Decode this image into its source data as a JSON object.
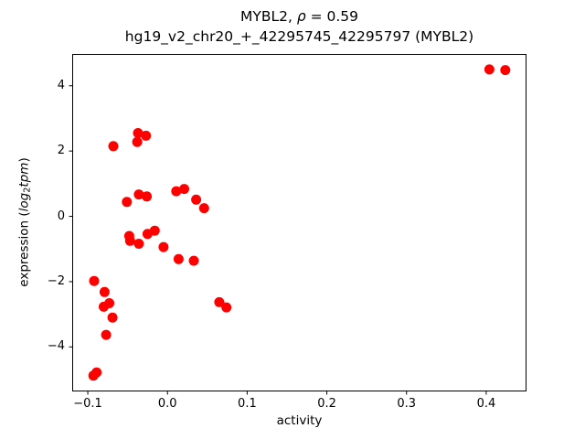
{
  "labels": {
    "title_prefix": "MYBL2, ",
    "title_rho": "ρ",
    "title_suffix": " = 0.59",
    "subtitle": "hg19_v2_chr20_+_42295745_42295797 (MYBL2)",
    "xlabel": "activity",
    "ylabel_prefix": "expression (",
    "ylabel_log": "log",
    "ylabel_sub": "2",
    "ylabel_tpm": "tpm",
    "ylabel_suffix": ")"
  },
  "chart_data": {
    "type": "scatter",
    "title": "MYBL2, ρ = 0.59",
    "subtitle": "hg19_v2_chr20_+_42295745_42295797 (MYBL2)",
    "xlabel": "activity",
    "ylabel": "expression (log2 tpm)",
    "grid": false,
    "legend": "none",
    "marker_color": "#ff0000",
    "marker_radius_px": 5.5,
    "frame_color": "#000000",
    "xlim": [
      -0.119,
      0.45
    ],
    "ylim": [
      -5.35,
      4.96
    ],
    "x_ticks": [
      {
        "v": -0.1,
        "label": "−0.1"
      },
      {
        "v": 0.0,
        "label": "0.0"
      },
      {
        "v": 0.1,
        "label": "0.1"
      },
      {
        "v": 0.2,
        "label": "0.2"
      },
      {
        "v": 0.3,
        "label": "0.3"
      },
      {
        "v": 0.4,
        "label": "0.4"
      }
    ],
    "y_ticks": [
      {
        "v": -4,
        "label": "−4"
      },
      {
        "v": -2,
        "label": "−2"
      },
      {
        "v": 0,
        "label": "0"
      },
      {
        "v": 2,
        "label": "2"
      },
      {
        "v": 4,
        "label": "4"
      }
    ],
    "points": [
      [
        -0.093,
        -4.88
      ],
      [
        -0.092,
        -1.98
      ],
      [
        -0.089,
        -4.78
      ],
      [
        -0.08,
        -2.77
      ],
      [
        -0.079,
        -2.32
      ],
      [
        -0.077,
        -3.63
      ],
      [
        -0.073,
        -2.66
      ],
      [
        -0.069,
        -3.1
      ],
      [
        -0.068,
        2.15
      ],
      [
        -0.051,
        0.44
      ],
      [
        -0.048,
        -0.6
      ],
      [
        -0.047,
        -0.75
      ],
      [
        -0.038,
        2.28
      ],
      [
        -0.037,
        2.55
      ],
      [
        -0.036,
        0.67
      ],
      [
        -0.036,
        -0.84
      ],
      [
        -0.027,
        2.47
      ],
      [
        -0.026,
        0.61
      ],
      [
        -0.025,
        -0.54
      ],
      [
        -0.016,
        -0.44
      ],
      [
        -0.005,
        -0.94
      ],
      [
        0.011,
        0.77
      ],
      [
        0.014,
        -1.31
      ],
      [
        0.021,
        0.84
      ],
      [
        0.033,
        -1.36
      ],
      [
        0.036,
        0.51
      ],
      [
        0.046,
        0.25
      ],
      [
        0.065,
        -2.63
      ],
      [
        0.074,
        -2.79
      ],
      [
        0.404,
        4.5
      ],
      [
        0.424,
        4.48
      ]
    ]
  }
}
